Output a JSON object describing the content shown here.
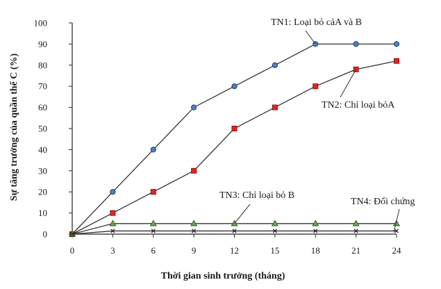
{
  "chart_data": {
    "type": "line",
    "xlabel": "Thời gian sinh trưởng (tháng)",
    "ylabel": "Sự tăng trưởng của quần thể C (%)",
    "x": [
      0,
      3,
      6,
      9,
      12,
      15,
      18,
      21,
      24
    ],
    "xlim": [
      0,
      24
    ],
    "ylim": [
      0,
      100
    ],
    "yticks": [
      0,
      10,
      20,
      30,
      40,
      50,
      60,
      70,
      80,
      90,
      100
    ],
    "grid": false,
    "legend": "none",
    "series": [
      {
        "name": "TN1: Loại bỏ cảA và B",
        "marker": "circle",
        "color": "#4f7fc4",
        "values": [
          0,
          20,
          40,
          60,
          70,
          80,
          90,
          90,
          90
        ]
      },
      {
        "name": "TN2: Chỉ loại bỏA",
        "marker": "square",
        "color": "#e02424",
        "values": [
          0,
          10,
          20,
          30,
          50,
          60,
          70,
          78,
          82
        ]
      },
      {
        "name": "TN3: Chỉ loại bỏ B",
        "marker": "triangle",
        "color": "#6aa84f",
        "values": [
          0,
          5,
          5,
          5,
          5,
          5,
          5,
          5,
          5
        ]
      },
      {
        "name": "TN4: Đối chứng",
        "marker": "x",
        "color": "#222222",
        "values": [
          0,
          1.5,
          1.5,
          1.5,
          1.5,
          1.5,
          1.5,
          1.5,
          1.5
        ]
      }
    ]
  }
}
